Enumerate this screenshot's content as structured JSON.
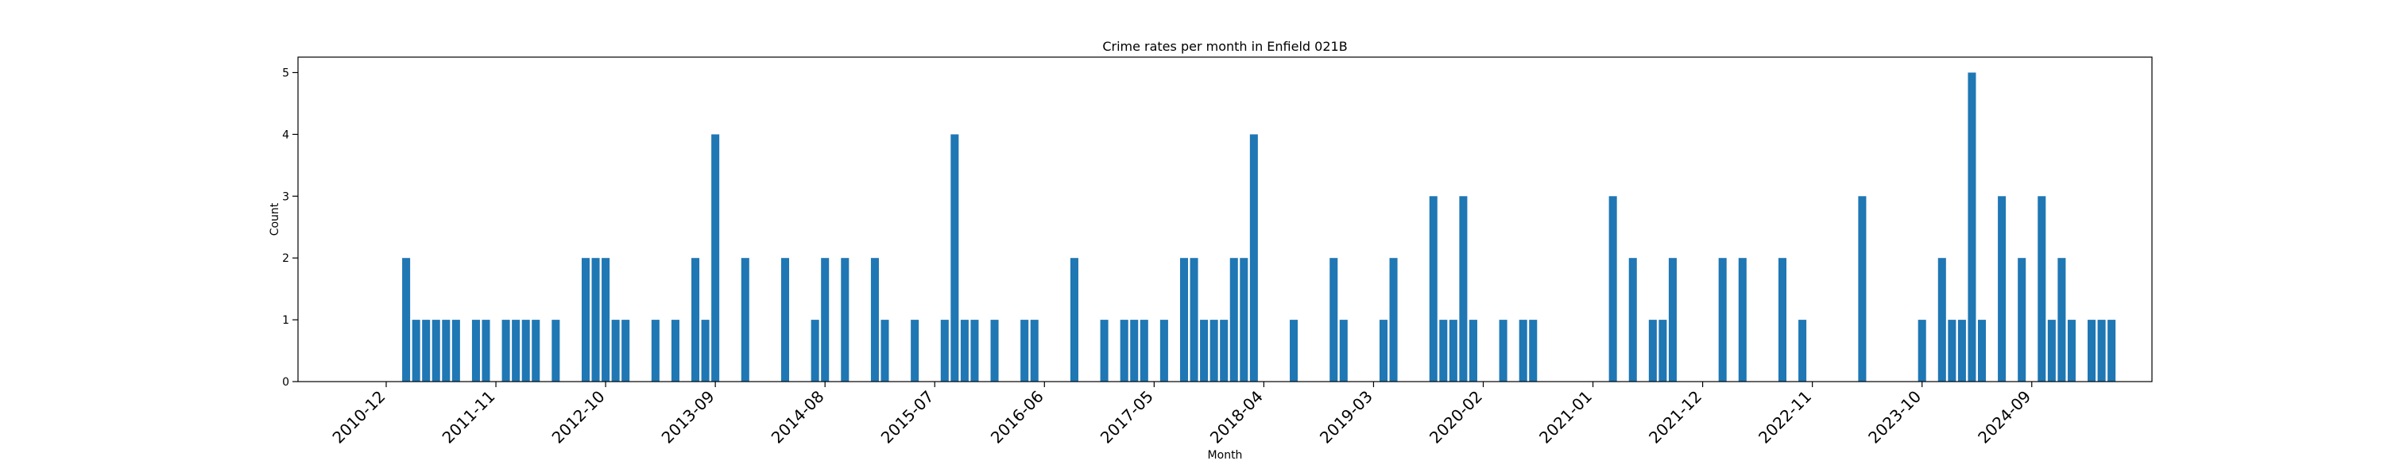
{
  "chart_data": {
    "type": "bar",
    "title": "Crime rates per month in Enfield 021B",
    "xlabel": "Month",
    "ylabel": "Count",
    "ylim": [
      0,
      5.25
    ],
    "yticks": [
      0,
      1,
      2,
      3,
      4,
      5
    ],
    "xticks": [
      "2010-12",
      "2011-11",
      "2012-10",
      "2013-09",
      "2014-08",
      "2015-07",
      "2016-06",
      "2017-05",
      "2018-04",
      "2019-03",
      "2020-02",
      "2021-01",
      "2021-12",
      "2022-11",
      "2023-10",
      "2024-09"
    ],
    "grid": false,
    "bar_color": "#1f77b4",
    "x": [
      "2011-02",
      "2011-03",
      "2011-04",
      "2011-05",
      "2011-06",
      "2011-07",
      "2011-09",
      "2011-10",
      "2011-12",
      "2012-01",
      "2012-02",
      "2012-03",
      "2012-05",
      "2012-08",
      "2012-09",
      "2012-10",
      "2012-11",
      "2012-12",
      "2013-03",
      "2013-05",
      "2013-07",
      "2013-08",
      "2013-09",
      "2013-12",
      "2014-04",
      "2014-07",
      "2014-08",
      "2014-10",
      "2015-01",
      "2015-02",
      "2015-05",
      "2015-08",
      "2015-09",
      "2015-10",
      "2015-11",
      "2016-01",
      "2016-04",
      "2016-05",
      "2016-09",
      "2016-12",
      "2017-02",
      "2017-03",
      "2017-04",
      "2017-06",
      "2017-08",
      "2017-09",
      "2017-10",
      "2017-11",
      "2017-12",
      "2018-01",
      "2018-02",
      "2018-03",
      "2018-07",
      "2018-11",
      "2018-12",
      "2019-04",
      "2019-05",
      "2019-09",
      "2019-10",
      "2019-11",
      "2019-12",
      "2020-01",
      "2020-04",
      "2020-06",
      "2020-07",
      "2021-03",
      "2021-05",
      "2021-07",
      "2021-08",
      "2021-09",
      "2022-02",
      "2022-04",
      "2022-08",
      "2022-10",
      "2023-04",
      "2023-10",
      "2023-12",
      "2024-01",
      "2024-02",
      "2024-03",
      "2024-04",
      "2024-06",
      "2024-08",
      "2024-10",
      "2024-11",
      "2024-12",
      "2025-01",
      "2025-03",
      "2025-04",
      "2025-05"
    ],
    "values": [
      2,
      1,
      1,
      1,
      1,
      1,
      1,
      1,
      1,
      1,
      1,
      1,
      1,
      2,
      2,
      2,
      1,
      1,
      1,
      1,
      2,
      1,
      4,
      2,
      2,
      1,
      2,
      2,
      2,
      1,
      1,
      1,
      4,
      1,
      1,
      1,
      1,
      1,
      2,
      1,
      1,
      1,
      1,
      1,
      2,
      2,
      1,
      1,
      1,
      2,
      2,
      4,
      1,
      2,
      1,
      1,
      2,
      3,
      1,
      1,
      3,
      1,
      1,
      1,
      1,
      3,
      2,
      1,
      1,
      2,
      2,
      2,
      2,
      1,
      3,
      1,
      2,
      1,
      1,
      5,
      1,
      3,
      2,
      3,
      1,
      2,
      1,
      1,
      1,
      1
    ]
  }
}
